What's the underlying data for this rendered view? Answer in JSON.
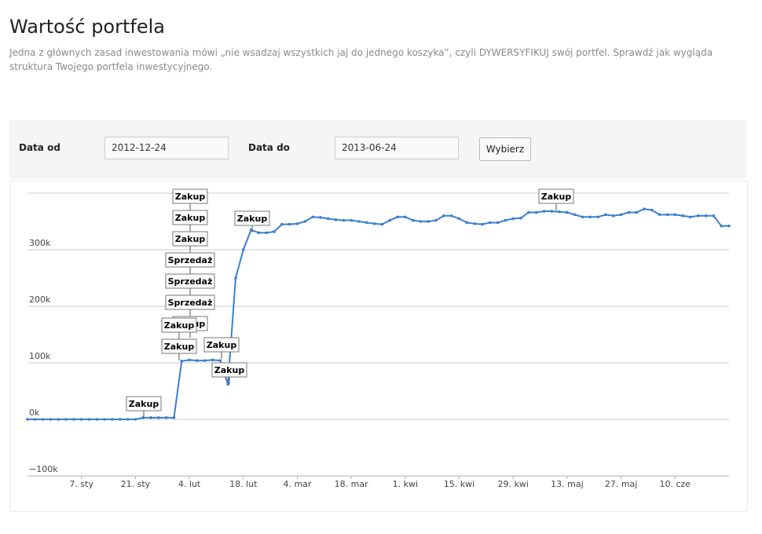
{
  "header": {
    "title": "Wartość portfela",
    "description": "Jedna z głównych zasad inwestowania mówi „nie wsadzaj wszystkich jaj do jednego koszyka”, czyli DYWERSYFIKUJ swój portfel. Sprawdź jak wygląda struktura Twojego portfela inwestycyjnego."
  },
  "filter": {
    "from_label": "Data od",
    "from_value": "2012-12-24",
    "to_label": "Data do",
    "to_value": "2013-06-24",
    "button": "Wybierz"
  },
  "chart_data": {
    "type": "line",
    "color": "#3a7fd0",
    "grid": true,
    "categories": [
      null,
      null,
      null,
      null,
      null,
      null,
      null,
      "7. sty",
      null,
      null,
      null,
      null,
      null,
      null,
      "21. sty",
      null,
      null,
      null,
      null,
      null,
      null,
      "4. lut",
      null,
      null,
      null,
      null,
      null,
      null,
      "18. lut",
      null,
      null,
      null,
      null,
      null,
      null,
      "4. mar",
      null,
      null,
      null,
      null,
      null,
      null,
      "18. mar",
      null,
      null,
      null,
      null,
      null,
      null,
      "1. kwi",
      null,
      null,
      null,
      null,
      null,
      null,
      "15. kwi",
      null,
      null,
      null,
      null,
      null,
      null,
      "29. kwi",
      null,
      null,
      null,
      null,
      null,
      null,
      "13. maj",
      null,
      null,
      null,
      null,
      null,
      null,
      "27. maj",
      null,
      null,
      null,
      null,
      null,
      null,
      "10. cze",
      null,
      null,
      null,
      null,
      null,
      null,
      null
    ],
    "values": [
      0,
      0,
      0,
      0,
      0,
      0,
      0,
      0,
      0,
      0,
      0,
      0,
      0,
      0,
      0,
      3000,
      3000,
      3000,
      3000,
      3000,
      103000,
      105000,
      104000,
      104000,
      105000,
      104000,
      62000,
      250000,
      300000,
      335000,
      330000,
      330000,
      332000,
      345000,
      345000,
      346000,
      350000,
      358000,
      357000,
      355000,
      353000,
      352000,
      352000,
      350000,
      348000,
      346000,
      345000,
      352000,
      358000,
      358000,
      352000,
      350000,
      350000,
      352000,
      360000,
      360000,
      355000,
      348000,
      346000,
      345000,
      348000,
      348000,
      352000,
      355000,
      356000,
      366000,
      366000,
      368000,
      368000,
      367000,
      366000,
      362000,
      358000,
      358000,
      358000,
      362000,
      360000,
      362000,
      366000,
      366000,
      372000,
      370000,
      362000,
      362000,
      362000,
      360000,
      358000,
      360000,
      360000,
      360000,
      342000,
      342000
    ],
    "ylim": [
      -100000,
      400000
    ],
    "yticks": [
      {
        "value": -100000,
        "label": "−100k"
      },
      {
        "value": 0,
        "label": "0k"
      },
      {
        "value": 100000,
        "label": "100k"
      },
      {
        "value": 200000,
        "label": "200k"
      },
      {
        "value": 300000,
        "label": "300k"
      }
    ],
    "annotations": [
      "Zakup",
      "Zakup",
      "Zakup",
      "Zakup",
      "Sprzedaż",
      "Sprzedaż",
      "Sprzedaż",
      "Zakup",
      "Zakup",
      "Zakup",
      "Zakup",
      "Zakup",
      "Zakup",
      "Zakup"
    ]
  }
}
